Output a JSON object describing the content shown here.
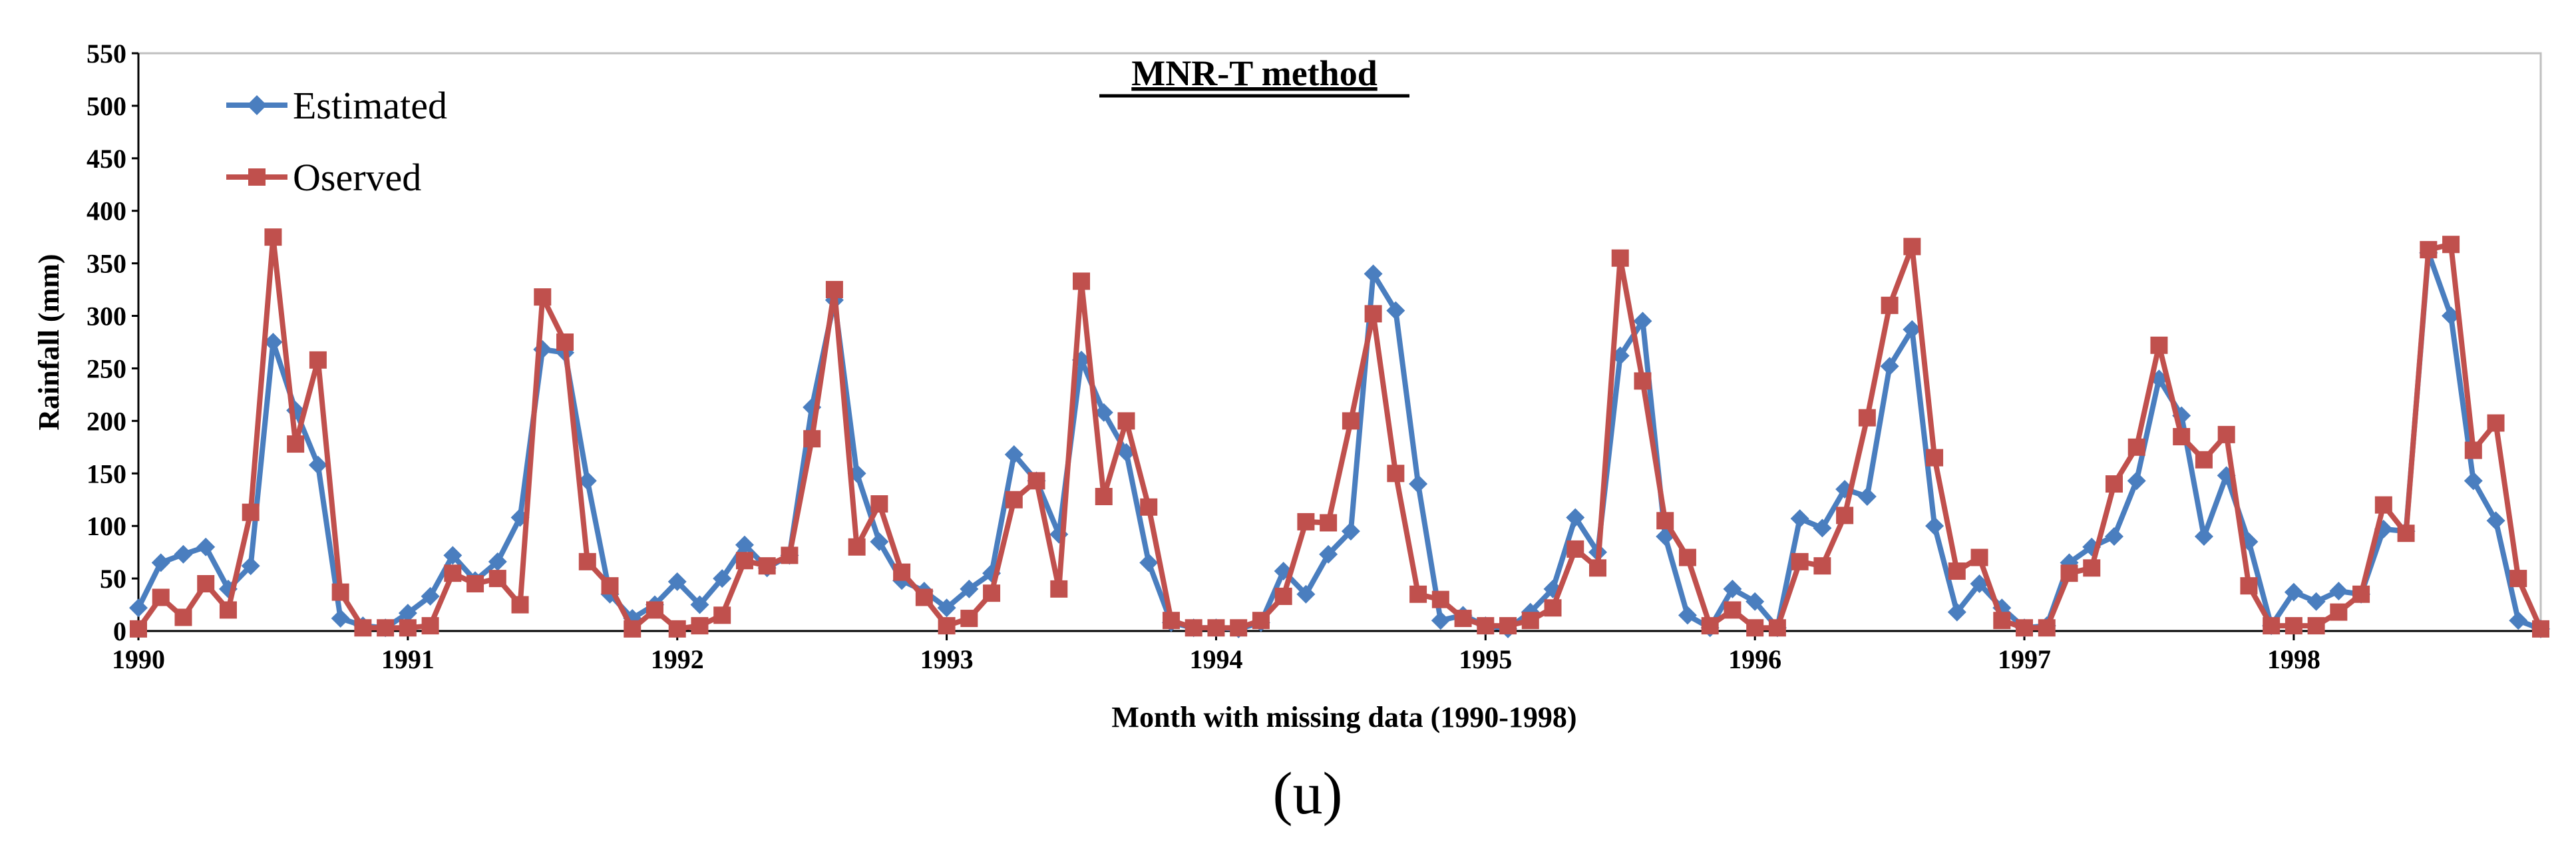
{
  "chart_data": {
    "type": "line",
    "title": "MNR-T method",
    "xlabel": "Month with missing data (1990-1998)",
    "ylabel": "Rainfall (mm)",
    "panel_label": "(u)",
    "ylim": [
      0,
      550
    ],
    "yticks": [
      "0",
      "50",
      "100",
      "150",
      "200",
      "250",
      "300",
      "350",
      "400",
      "450",
      "500",
      "550"
    ],
    "xticks": [
      "1990",
      "1991",
      "1992",
      "1993",
      "1994",
      "1995",
      "1996",
      "1997",
      "1998"
    ],
    "months_per_year": 12,
    "legend_position": "top-left",
    "series": [
      {
        "name": "Estimated",
        "color": "#4a7ebf",
        "marker": "diamond",
        "values": [
          22,
          65,
          73,
          80,
          40,
          62,
          275,
          210,
          158,
          12,
          5,
          3,
          17,
          33,
          72,
          48,
          66,
          108,
          268,
          265,
          143,
          35,
          12,
          25,
          47,
          25,
          50,
          82,
          60,
          72,
          213,
          315,
          150,
          85,
          48,
          38,
          22,
          40,
          55,
          168,
          143,
          92,
          258,
          208,
          170,
          65,
          8,
          3,
          3,
          2,
          8,
          57,
          35,
          73,
          95,
          340,
          305,
          140,
          10,
          15,
          5,
          2,
          18,
          40,
          108,
          75,
          262,
          295,
          90,
          15,
          3,
          40,
          28,
          3,
          107,
          98,
          135,
          128,
          252,
          287,
          100,
          18,
          45,
          22,
          3,
          5,
          65,
          80,
          90,
          143,
          240,
          205,
          90,
          148,
          85,
          5,
          37,
          28,
          38,
          35,
          97,
          95,
          360,
          300,
          143,
          105,
          10,
          2
        ]
      },
      {
        "name": "Oserved",
        "color": "#c0504d",
        "marker": "square",
        "values": [
          2,
          32,
          13,
          45,
          20,
          113,
          375,
          178,
          258,
          37,
          3,
          3,
          3,
          5,
          55,
          45,
          50,
          25,
          318,
          275,
          66,
          43,
          2,
          20,
          2,
          5,
          15,
          67,
          62,
          72,
          183,
          325,
          80,
          121,
          56,
          32,
          5,
          12,
          36,
          125,
          143,
          40,
          333,
          128,
          200,
          118,
          10,
          3,
          3,
          3,
          10,
          33,
          104,
          103,
          200,
          302,
          150,
          35,
          30,
          12,
          5,
          5,
          10,
          22,
          78,
          60,
          355,
          238,
          105,
          70,
          5,
          20,
          3,
          3,
          66,
          62,
          110,
          203,
          310,
          366,
          165,
          57,
          70,
          10,
          3,
          3,
          55,
          60,
          140,
          175,
          272,
          185,
          163,
          187,
          43,
          5,
          5,
          5,
          18,
          35,
          120,
          93,
          363,
          368,
          172,
          198,
          50,
          2
        ]
      }
    ]
  }
}
